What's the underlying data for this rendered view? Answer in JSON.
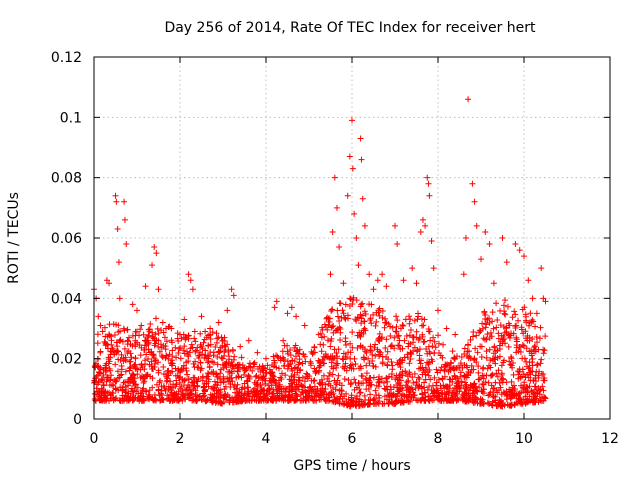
{
  "chart_data": {
    "type": "scatter",
    "title": "Day 256 of 2014, Rate Of TEC Index for receiver hert",
    "xlabel": "GPS time / hours",
    "ylabel": "ROTI / TECUs",
    "xlim": [
      0,
      12
    ],
    "ylim": [
      0,
      0.12
    ],
    "x_ticks": [
      0,
      2,
      4,
      6,
      8,
      10,
      12
    ],
    "y_ticks": [
      0,
      0.02,
      0.04,
      0.06,
      0.08,
      0.1,
      0.12
    ],
    "x_tick_labels": [
      "0",
      "2",
      "4",
      "6",
      "8",
      "10",
      "12"
    ],
    "y_tick_labels": [
      "0",
      "0.02",
      "0.04",
      "0.06",
      "0.08",
      "0.1",
      "0.12"
    ],
    "grid": true,
    "marker": "plus",
    "color": "#ff0000",
    "series": [
      {
        "name": "ROTI",
        "points": [
          [
            0.0,
            0.043
          ],
          [
            0.05,
            0.04
          ],
          [
            0.1,
            0.034
          ],
          [
            0.15,
            0.031
          ],
          [
            0.2,
            0.029
          ],
          [
            0.3,
            0.046
          ],
          [
            0.35,
            0.045
          ],
          [
            0.5,
            0.074
          ],
          [
            0.52,
            0.072
          ],
          [
            0.55,
            0.063
          ],
          [
            0.58,
            0.052
          ],
          [
            0.6,
            0.04
          ],
          [
            0.7,
            0.072
          ],
          [
            0.72,
            0.066
          ],
          [
            0.75,
            0.058
          ],
          [
            0.9,
            0.038
          ],
          [
            1.0,
            0.036
          ],
          [
            1.1,
            0.031
          ],
          [
            1.2,
            0.044
          ],
          [
            1.35,
            0.051
          ],
          [
            1.4,
            0.057
          ],
          [
            1.45,
            0.055
          ],
          [
            1.5,
            0.043
          ],
          [
            1.6,
            0.032
          ],
          [
            1.8,
            0.03
          ],
          [
            2.0,
            0.028
          ],
          [
            2.1,
            0.033
          ],
          [
            2.2,
            0.048
          ],
          [
            2.25,
            0.046
          ],
          [
            2.3,
            0.043
          ],
          [
            2.5,
            0.034
          ],
          [
            2.7,
            0.03
          ],
          [
            2.9,
            0.032
          ],
          [
            3.1,
            0.036
          ],
          [
            3.2,
            0.043
          ],
          [
            3.25,
            0.041
          ],
          [
            3.4,
            0.024
          ],
          [
            3.6,
            0.026
          ],
          [
            3.8,
            0.022
          ],
          [
            4.0,
            0.02
          ],
          [
            4.2,
            0.037
          ],
          [
            4.25,
            0.039
          ],
          [
            4.4,
            0.026
          ],
          [
            4.5,
            0.035
          ],
          [
            4.6,
            0.037
          ],
          [
            4.7,
            0.034
          ],
          [
            4.9,
            0.031
          ],
          [
            5.1,
            0.022
          ],
          [
            5.3,
            0.027
          ],
          [
            5.5,
            0.048
          ],
          [
            5.55,
            0.062
          ],
          [
            5.6,
            0.08
          ],
          [
            5.65,
            0.07
          ],
          [
            5.7,
            0.057
          ],
          [
            5.8,
            0.045
          ],
          [
            5.9,
            0.074
          ],
          [
            5.95,
            0.087
          ],
          [
            6.0,
            0.099
          ],
          [
            6.02,
            0.083
          ],
          [
            6.05,
            0.068
          ],
          [
            6.1,
            0.06
          ],
          [
            6.15,
            0.051
          ],
          [
            6.2,
            0.093
          ],
          [
            6.22,
            0.086
          ],
          [
            6.25,
            0.073
          ],
          [
            6.3,
            0.064
          ],
          [
            6.4,
            0.048
          ],
          [
            6.5,
            0.043
          ],
          [
            6.6,
            0.046
          ],
          [
            6.7,
            0.048
          ],
          [
            6.8,
            0.044
          ],
          [
            7.0,
            0.064
          ],
          [
            7.05,
            0.058
          ],
          [
            7.2,
            0.046
          ],
          [
            7.4,
            0.05
          ],
          [
            7.5,
            0.045
          ],
          [
            7.6,
            0.062
          ],
          [
            7.65,
            0.066
          ],
          [
            7.7,
            0.064
          ],
          [
            7.75,
            0.08
          ],
          [
            7.78,
            0.078
          ],
          [
            7.8,
            0.074
          ],
          [
            7.85,
            0.059
          ],
          [
            7.9,
            0.05
          ],
          [
            8.0,
            0.036
          ],
          [
            8.2,
            0.03
          ],
          [
            8.4,
            0.028
          ],
          [
            8.6,
            0.048
          ],
          [
            8.65,
            0.06
          ],
          [
            8.7,
            0.106
          ],
          [
            8.8,
            0.078
          ],
          [
            8.85,
            0.072
          ],
          [
            8.9,
            0.064
          ],
          [
            9.0,
            0.053
          ],
          [
            9.1,
            0.062
          ],
          [
            9.2,
            0.058
          ],
          [
            9.3,
            0.045
          ],
          [
            9.5,
            0.06
          ],
          [
            9.6,
            0.052
          ],
          [
            9.8,
            0.058
          ],
          [
            9.9,
            0.056
          ],
          [
            10.0,
            0.054
          ],
          [
            10.1,
            0.046
          ],
          [
            10.2,
            0.04
          ],
          [
            10.3,
            0.035
          ],
          [
            10.4,
            0.05
          ],
          [
            10.45,
            0.04
          ],
          [
            10.5,
            0.039
          ]
        ]
      }
    ],
    "envelope": {
      "description": "dense band of measurements between these bounds",
      "x": [
        0,
        0.5,
        1,
        1.5,
        2,
        2.5,
        3,
        3.5,
        4,
        4.5,
        5,
        5.5,
        6,
        6.5,
        7,
        7.5,
        8,
        8.5,
        9,
        9.5,
        10,
        10.5
      ],
      "low": [
        0.006,
        0.006,
        0.006,
        0.006,
        0.006,
        0.006,
        0.005,
        0.006,
        0.006,
        0.006,
        0.006,
        0.006,
        0.004,
        0.005,
        0.005,
        0.006,
        0.006,
        0.006,
        0.005,
        0.004,
        0.005,
        0.006
      ],
      "high": [
        0.03,
        0.032,
        0.03,
        0.034,
        0.028,
        0.03,
        0.028,
        0.02,
        0.018,
        0.026,
        0.022,
        0.036,
        0.042,
        0.038,
        0.034,
        0.036,
        0.028,
        0.02,
        0.035,
        0.04,
        0.038,
        0.03
      ]
    }
  }
}
